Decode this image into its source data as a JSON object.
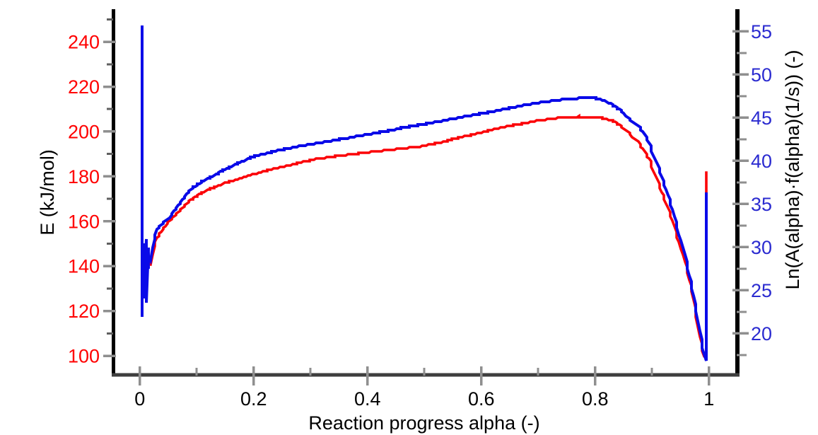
{
  "chart_data": {
    "type": "line",
    "title": "",
    "x_axis": {
      "label": "Reaction progress alpha (-)",
      "ticks": [
        0,
        0.2,
        0.4,
        0.6,
        0.8,
        1
      ],
      "tick_labels": [
        "0",
        "0.2",
        "0.4",
        "0.6",
        "0.8",
        "1"
      ],
      "minor_ticks": [
        0.1,
        0.3,
        0.5,
        0.7,
        0.9
      ],
      "range": [
        -0.045,
        1.05
      ],
      "label_color": "#000000"
    },
    "left_axis": {
      "label": "E (kJ/mol)",
      "ticks": [
        100,
        120,
        140,
        160,
        180,
        200,
        220,
        240
      ],
      "minor_ticks": [
        110,
        130,
        150,
        170,
        190,
        210,
        230,
        250
      ],
      "range": [
        91.5,
        253.9
      ],
      "tick_label_color": "#ff0000",
      "title_color": "#000000"
    },
    "right_axis": {
      "label": "Ln(A(alpha)·f(alpha)(1/s)) (-)",
      "ticks": [
        20,
        25,
        30,
        35,
        40,
        45,
        50,
        55
      ],
      "minor_ticks": [
        17.5,
        22.5,
        27.5,
        32.5,
        37.5,
        42.5,
        47.5,
        52.5
      ],
      "range": [
        15.2,
        57.4
      ],
      "tick_label_color": "#2b2bd0",
      "title_color": "#000000"
    },
    "grid": false,
    "legend": false,
    "colors": {
      "red_series": "#fb0006",
      "blue_series": "#0a0ae8",
      "major_tick": "#8f8f8f",
      "minor_tick": "#5f5f5f",
      "x_axis_line": "#3e3e3e",
      "y_axis_line": "#000000"
    },
    "series": [
      {
        "name": "E (kJ/mol)",
        "axis": "left",
        "color": "#fb0006",
        "points": [
          [
            0.018,
            141
          ],
          [
            0.021,
            145
          ],
          [
            0.025,
            149
          ],
          [
            0.03,
            152.5
          ],
          [
            0.04,
            156.5
          ],
          [
            0.05,
            159.5
          ],
          [
            0.06,
            162
          ],
          [
            0.07,
            164.5
          ],
          [
            0.08,
            167
          ],
          [
            0.09,
            169.5
          ],
          [
            0.105,
            172
          ],
          [
            0.125,
            174.5
          ],
          [
            0.15,
            177
          ],
          [
            0.175,
            179
          ],
          [
            0.2,
            181
          ],
          [
            0.225,
            182.7
          ],
          [
            0.25,
            184.2
          ],
          [
            0.28,
            186
          ],
          [
            0.31,
            187.7
          ],
          [
            0.34,
            188.8
          ],
          [
            0.37,
            189.8
          ],
          [
            0.4,
            190.7
          ],
          [
            0.43,
            191.6
          ],
          [
            0.46,
            192.4
          ],
          [
            0.495,
            193.4
          ],
          [
            0.53,
            195.2
          ],
          [
            0.56,
            197.2
          ],
          [
            0.59,
            199
          ],
          [
            0.62,
            200.9
          ],
          [
            0.65,
            202.5
          ],
          [
            0.68,
            203.9
          ],
          [
            0.7,
            204.9
          ],
          [
            0.72,
            205.6
          ],
          [
            0.75,
            206.4
          ],
          [
            0.77,
            206.6
          ],
          [
            0.8,
            206.5
          ],
          [
            0.822,
            205.6
          ],
          [
            0.835,
            204.2
          ],
          [
            0.848,
            202
          ],
          [
            0.86,
            199.3
          ],
          [
            0.872,
            196.2
          ],
          [
            0.884,
            192.4
          ],
          [
            0.897,
            186.5
          ],
          [
            0.909,
            178.5
          ],
          [
            0.922,
            169.5
          ],
          [
            0.936,
            160
          ],
          [
            0.948,
            150.5
          ],
          [
            0.96,
            139.5
          ],
          [
            0.97,
            128.5
          ],
          [
            0.978,
            117.5
          ],
          [
            0.984,
            108.5
          ],
          [
            0.989,
            102
          ],
          [
            0.992,
            99.5
          ],
          [
            0.9945,
            99.3
          ],
          [
            0.9955,
            181.6
          ]
        ]
      },
      {
        "name": "Ln(A(alpha)·f(alpha)(1/s))",
        "axis": "right",
        "color": "#0a0ae8",
        "points": [
          [
            0.003,
            55.5
          ],
          [
            0.0035,
            22
          ],
          [
            0.005,
            30.5
          ],
          [
            0.006,
            27
          ],
          [
            0.007,
            24
          ],
          [
            0.008,
            30.5
          ],
          [
            0.009,
            26
          ],
          [
            0.011,
            31
          ],
          [
            0.012,
            23.5
          ],
          [
            0.0135,
            30
          ],
          [
            0.015,
            27.5
          ],
          [
            0.017,
            29
          ],
          [
            0.019,
            28.5
          ],
          [
            0.021,
            30
          ],
          [
            0.025,
            31
          ],
          [
            0.03,
            32
          ],
          [
            0.04,
            32.8
          ],
          [
            0.052,
            33.4
          ],
          [
            0.06,
            34.2
          ],
          [
            0.07,
            35
          ],
          [
            0.08,
            35.9
          ],
          [
            0.09,
            36.7
          ],
          [
            0.105,
            37.4
          ],
          [
            0.125,
            38.1
          ],
          [
            0.15,
            39
          ],
          [
            0.175,
            39.8
          ],
          [
            0.2,
            40.5
          ],
          [
            0.225,
            40.9
          ],
          [
            0.25,
            41.3
          ],
          [
            0.28,
            41.7
          ],
          [
            0.31,
            42
          ],
          [
            0.34,
            42.35
          ],
          [
            0.37,
            42.7
          ],
          [
            0.4,
            43.05
          ],
          [
            0.43,
            43.4
          ],
          [
            0.46,
            43.8
          ],
          [
            0.495,
            44.2
          ],
          [
            0.53,
            44.6
          ],
          [
            0.56,
            45
          ],
          [
            0.59,
            45.35
          ],
          [
            0.62,
            45.7
          ],
          [
            0.65,
            46.1
          ],
          [
            0.68,
            46.5
          ],
          [
            0.7,
            46.7
          ],
          [
            0.72,
            46.9
          ],
          [
            0.75,
            47.15
          ],
          [
            0.78,
            47.3
          ],
          [
            0.8,
            47.25
          ],
          [
            0.822,
            46.8
          ],
          [
            0.835,
            46.3
          ],
          [
            0.848,
            45.7
          ],
          [
            0.86,
            44.8
          ],
          [
            0.872,
            44.2
          ],
          [
            0.884,
            43.4
          ],
          [
            0.897,
            41.7
          ],
          [
            0.909,
            39.6
          ],
          [
            0.922,
            37.2
          ],
          [
            0.936,
            34.3
          ],
          [
            0.948,
            31.5
          ],
          [
            0.96,
            28.3
          ],
          [
            0.97,
            25.2
          ],
          [
            0.978,
            22.5
          ],
          [
            0.984,
            20.3
          ],
          [
            0.989,
            18.3
          ],
          [
            0.9935,
            16.9
          ],
          [
            0.995,
            17.2
          ],
          [
            0.9955,
            36.1
          ]
        ]
      }
    ]
  }
}
